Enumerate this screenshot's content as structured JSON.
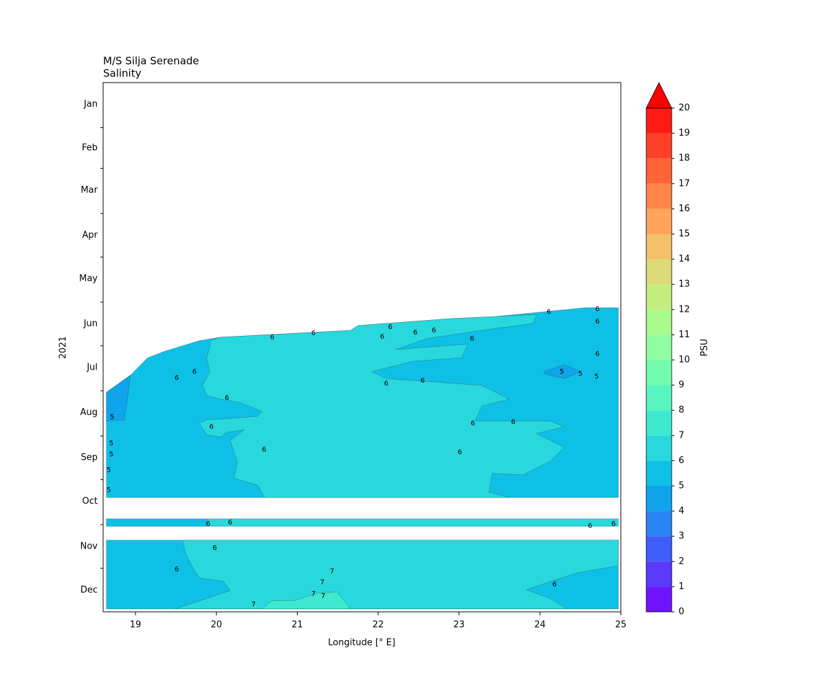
{
  "chart_data": {
    "type": "contourf",
    "title": "M/S Silja Serenade",
    "subtitle": "Salinity",
    "x_label": "Longitude [° E]",
    "y_label": "2021",
    "xlim": [
      18.6,
      25
    ],
    "xticks": [
      19,
      20,
      21,
      22,
      23,
      24,
      25
    ],
    "ylim": [
      365,
      1
    ],
    "yticks": [
      {
        "value": 16,
        "label": "Jan"
      },
      {
        "value": 46,
        "label": "Feb"
      },
      {
        "value": 75,
        "label": "Mar"
      },
      {
        "value": 106,
        "label": "Apr"
      },
      {
        "value": 136,
        "label": "May"
      },
      {
        "value": 167,
        "label": "Jun"
      },
      {
        "value": 197,
        "label": "Jul"
      },
      {
        "value": 228,
        "label": "Aug"
      },
      {
        "value": 259,
        "label": "Sep"
      },
      {
        "value": 289,
        "label": "Oct"
      },
      {
        "value": 320,
        "label": "Nov"
      },
      {
        "value": 350,
        "label": "Dec"
      }
    ],
    "yminor": [
      32,
      60,
      91,
      121,
      152,
      182,
      213,
      244,
      274,
      305,
      335
    ],
    "colorbar": {
      "label": "PSU",
      "levels": [
        0,
        1,
        2,
        3,
        4,
        5,
        6,
        7,
        8,
        9,
        10,
        11,
        12,
        13,
        14,
        15,
        16,
        17,
        18,
        19,
        20
      ],
      "colors": [
        "#7014ff",
        "#5a38fc",
        "#3d5efa",
        "#2884f3",
        "#10a4ec",
        "#0fc0e6",
        "#28d8dc",
        "#3ee9d0",
        "#58f5c0",
        "#72fcb0",
        "#90fea0",
        "#aafa8c",
        "#c4ed80",
        "#dcda78",
        "#f4c06a",
        "#ffa45a",
        "#ff8648",
        "#ff6438",
        "#ff4028",
        "#ff1a14"
      ],
      "extend": "max",
      "extend_color": "#ff0000"
    },
    "regions": [
      {
        "range": [
          5,
          6
        ],
        "lon": [
          18.64,
          18.94,
          19.15,
          19.37,
          19.79,
          20.05,
          21.66,
          21.75,
          22.9,
          23.45,
          24.56,
          24.97,
          24.97,
          18.64
        ],
        "day": [
          214,
          202.1,
          190.3,
          185.6,
          178.5,
          176.1,
          171.4,
          168.1,
          163.3,
          161.9,
          155.8,
          155.8,
          286.4,
          286.4
        ]
      },
      {
        "range": [
          6,
          7
        ],
        "lon": [
          19.92,
          20.05,
          21.66,
          21.75,
          22.9,
          23.45,
          23.96,
          23.92,
          23.28,
          22.6,
          22.22,
          23.11,
          23.03,
          22.43,
          21.92,
          22.09,
          23.28,
          23.62,
          23.28,
          23.2,
          24.13,
          24.3,
          23.96,
          24.3,
          24.13,
          23.79,
          23.41,
          23.37,
          23.62,
          20.6,
          20.51,
          20.22,
          20.26,
          20.17,
          20.34,
          20.13,
          20.05,
          19.88,
          19.79,
          19.88,
          20.17,
          20.51,
          20.56,
          20.3,
          20.05,
          19.88,
          19.83,
          19.92,
          19.88,
          19.92
        ],
        "day": [
          178.5,
          176.1,
          171.4,
          168.1,
          163.3,
          161.9,
          160.5,
          166.6,
          171.4,
          177.1,
          184.6,
          180.8,
          190.3,
          192.7,
          199.8,
          204.5,
          209.2,
          218.7,
          223.4,
          233.8,
          233.8,
          237.6,
          242.4,
          251.8,
          261.3,
          270.8,
          269.8,
          282.6,
          286.4,
          286.4,
          277.9,
          273.1,
          261.3,
          247.1,
          239.9,
          241.4,
          244.7,
          243.3,
          235.3,
          232.9,
          232.0,
          230.5,
          227.2,
          221.1,
          218.7,
          216.3,
          209.2,
          199.8,
          190.3,
          183.2
        ]
      },
      {
        "range": [
          4,
          5
        ],
        "lon": [
          18.64,
          18.94,
          18.9,
          18.86,
          18.64
        ],
        "day": [
          214,
          202.1,
          218.7,
          232.9,
          233.8
        ]
      },
      {
        "range": [
          4,
          5
        ],
        "lon": [
          24.05,
          24.3,
          24.51,
          24.3,
          24.05
        ],
        "day": [
          199.8,
          195.0,
          199.8,
          204.5,
          201.2
        ]
      },
      {
        "range": [
          5,
          6
        ],
        "lon": [
          18.64,
          19.88,
          19.88,
          18.64
        ],
        "day": [
          301,
          301,
          306.2,
          306.2
        ]
      },
      {
        "range": [
          6,
          7
        ],
        "lon": [
          19.88,
          24.97,
          24.97,
          19.88
        ],
        "day": [
          301,
          301,
          306.2,
          306.2
        ]
      },
      {
        "range": [
          5,
          6
        ],
        "lon": [
          18.64,
          24.97,
          24.97,
          18.64
        ],
        "day": [
          315.7,
          315.7,
          363,
          363
        ]
      },
      {
        "range": [
          6,
          7
        ],
        "lon": [
          19.58,
          24.97,
          24.97,
          24.47,
          24.13,
          23.83,
          24.13,
          24.34,
          19.49,
          19.88,
          20.17,
          20.09,
          19.79,
          19.71,
          19.62
        ],
        "day": [
          315.7,
          315.7,
          333.2,
          338.0,
          344.1,
          349.8,
          355.9,
          363.0,
          363.0,
          355.9,
          350.3,
          344.1,
          341.7,
          334.6,
          325.2
        ]
      },
      {
        "range": [
          7,
          8
        ],
        "lon": [
          20.56,
          20.69,
          20.98,
          21.24,
          21.49,
          21.66
        ],
        "day": [
          363.0,
          357.4,
          357.0,
          352.2,
          351.2,
          363.0
        ]
      }
    ],
    "contour_labels": {
      "lon": [
        24.11,
        24.71,
        24.71,
        20.69,
        21.2,
        22.15,
        22.46,
        22.69,
        23.16,
        22.05,
        19.51,
        19.73,
        20.13,
        18.71,
        19.94,
        20.59,
        22.55,
        22.1,
        24.27,
        24.5,
        24.7,
        24.71,
        23.67,
        23.17,
        23.01,
        18.7,
        18.7,
        18.67,
        18.67,
        19.9,
        20.17,
        24.62,
        24.91,
        19.98,
        19.51,
        21.43,
        21.31,
        21.2,
        21.32,
        24.18,
        20.46
      ],
      "day": [
        158.6,
        156.7,
        165.2,
        176.1,
        173.3,
        169.0,
        172.8,
        171.4,
        177.1,
        175.6,
        204.0,
        199.8,
        217.7,
        231.0,
        237.6,
        253.2,
        205.9,
        207.8,
        199.8,
        201.2,
        203.1,
        187.5,
        234.3,
        235.3,
        255.1,
        249.0,
        256.6,
        267.4,
        281.2,
        304.4,
        303.4,
        305.8,
        304.4,
        320.9,
        335.6,
        337.0,
        344.6,
        352.6,
        354.1,
        346.0,
        359.7
      ],
      "values": [
        6,
        6,
        6,
        6,
        6,
        6,
        6,
        6,
        6,
        6,
        6,
        6,
        6,
        5,
        6,
        6,
        6,
        6,
        5,
        5,
        5,
        6,
        6,
        6,
        6,
        5,
        5,
        5,
        5,
        6,
        6,
        6,
        6,
        6,
        6,
        7,
        7,
        7,
        7,
        6,
        7
      ]
    }
  }
}
